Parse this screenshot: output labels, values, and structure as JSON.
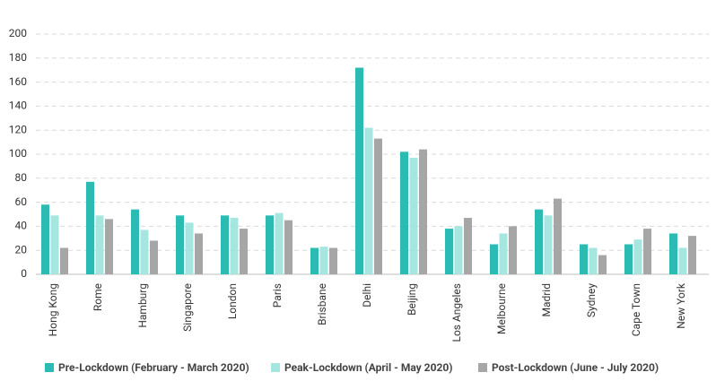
{
  "chart_data": {
    "type": "bar",
    "categories": [
      "Hong Kong",
      "Rome",
      "Hamburg",
      "Singapore",
      "London",
      "Paris",
      "Brisbane",
      "Delhi",
      "Beijing",
      "Los Angeles",
      "Melbourne",
      "Madrid",
      "Sydney",
      "Cape Town",
      "New York"
    ],
    "series": [
      {
        "name": "Pre-Lockdown (February - March 2020)",
        "color": "#2bbbb3",
        "values": [
          58,
          77,
          54,
          49,
          49,
          49,
          22,
          172,
          102,
          38,
          25,
          54,
          25,
          25,
          34
        ]
      },
      {
        "name": "Peak-Lockdown (April - May 2020)",
        "color": "#a6e6e0",
        "values": [
          49,
          49,
          37,
          43,
          47,
          51,
          23,
          122,
          97,
          40,
          34,
          49,
          22,
          29,
          22
        ]
      },
      {
        "name": "Post-Lockdown (June - July 2020)",
        "color": "#a6a6a6",
        "values": [
          22,
          46,
          28,
          34,
          38,
          45,
          22,
          113,
          104,
          47,
          40,
          63,
          16,
          38,
          32
        ]
      }
    ],
    "ylim": [
      0,
      200
    ],
    "yticks": [
      0,
      20,
      40,
      60,
      80,
      100,
      120,
      140,
      160,
      180,
      200
    ],
    "grid": true
  }
}
